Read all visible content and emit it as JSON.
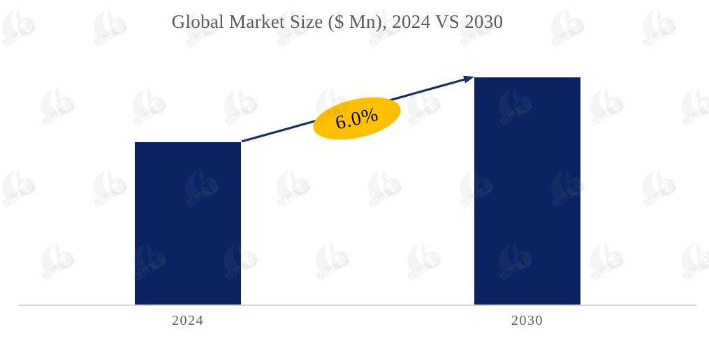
{
  "header": {
    "title": "Global Market Size ($ Mn), 2024 VS 2030",
    "title_color": "#595959"
  },
  "watermark": {
    "brand_text": "恒州诚思",
    "icon": "phoenix-leaf-logo",
    "color": "#8c8c8c"
  },
  "chart_data": {
    "type": "bar",
    "title": "Global Market Size ($ Mn), 2024 VS 2030",
    "categories": [
      "2024",
      "2030"
    ],
    "series": [
      {
        "name": "Global Market Size ($ Mn)",
        "values_relative": [
          100,
          140
        ]
      }
    ],
    "value_labels_shown": false,
    "y_axis_shown": false,
    "gridlines": false,
    "legend": "none",
    "annotation": {
      "cagr_label": "6.0%",
      "shape": "ellipse",
      "fill": "#ffc000",
      "text_color": "#000000"
    },
    "arrow": {
      "from_category": "2024",
      "to_category": "2030",
      "color": "#14306a"
    },
    "bar_color": "#0c2361",
    "axis_color": "#d9d9d9",
    "tick_label_color": "#595959"
  }
}
